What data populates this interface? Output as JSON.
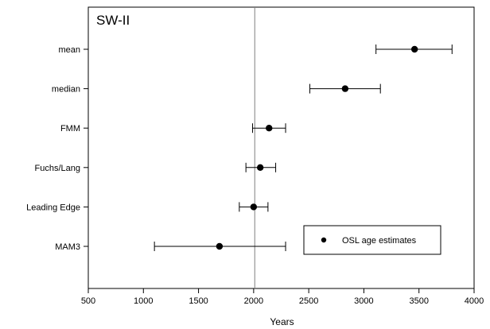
{
  "chart_data": {
    "type": "scatter",
    "title": "SW-II",
    "xlabel": "Years",
    "ylabel": "",
    "xlim": [
      500,
      4000
    ],
    "x_ticks": [
      500,
      1000,
      1500,
      2000,
      2500,
      3000,
      3500,
      4000
    ],
    "grid": false,
    "reference_line": {
      "x": 2010,
      "color": "#808080"
    },
    "categories": [
      "mean",
      "median",
      "FMM",
      "Fuchs/Lang",
      "Leading Edge",
      "MAM3"
    ],
    "series": [
      {
        "name": "OSL age estimates",
        "marker": "filled-circle",
        "color": "#000000",
        "points": [
          {
            "label": "mean",
            "x": 3460,
            "x_err_low": 3110,
            "x_err_high": 3800
          },
          {
            "label": "median",
            "x": 2830,
            "x_err_low": 2510,
            "x_err_high": 3150
          },
          {
            "label": "FMM",
            "x": 2140,
            "x_err_low": 1990,
            "x_err_high": 2290
          },
          {
            "label": "Fuchs/Lang",
            "x": 2060,
            "x_err_low": 1930,
            "x_err_high": 2200
          },
          {
            "label": "Leading Edge",
            "x": 2000,
            "x_err_low": 1870,
            "x_err_high": 2130
          },
          {
            "label": "MAM3",
            "x": 1690,
            "x_err_low": 1100,
            "x_err_high": 2290
          }
        ]
      }
    ],
    "legend": {
      "position": "bottom-right",
      "entries": [
        "OSL age estimates"
      ]
    }
  }
}
